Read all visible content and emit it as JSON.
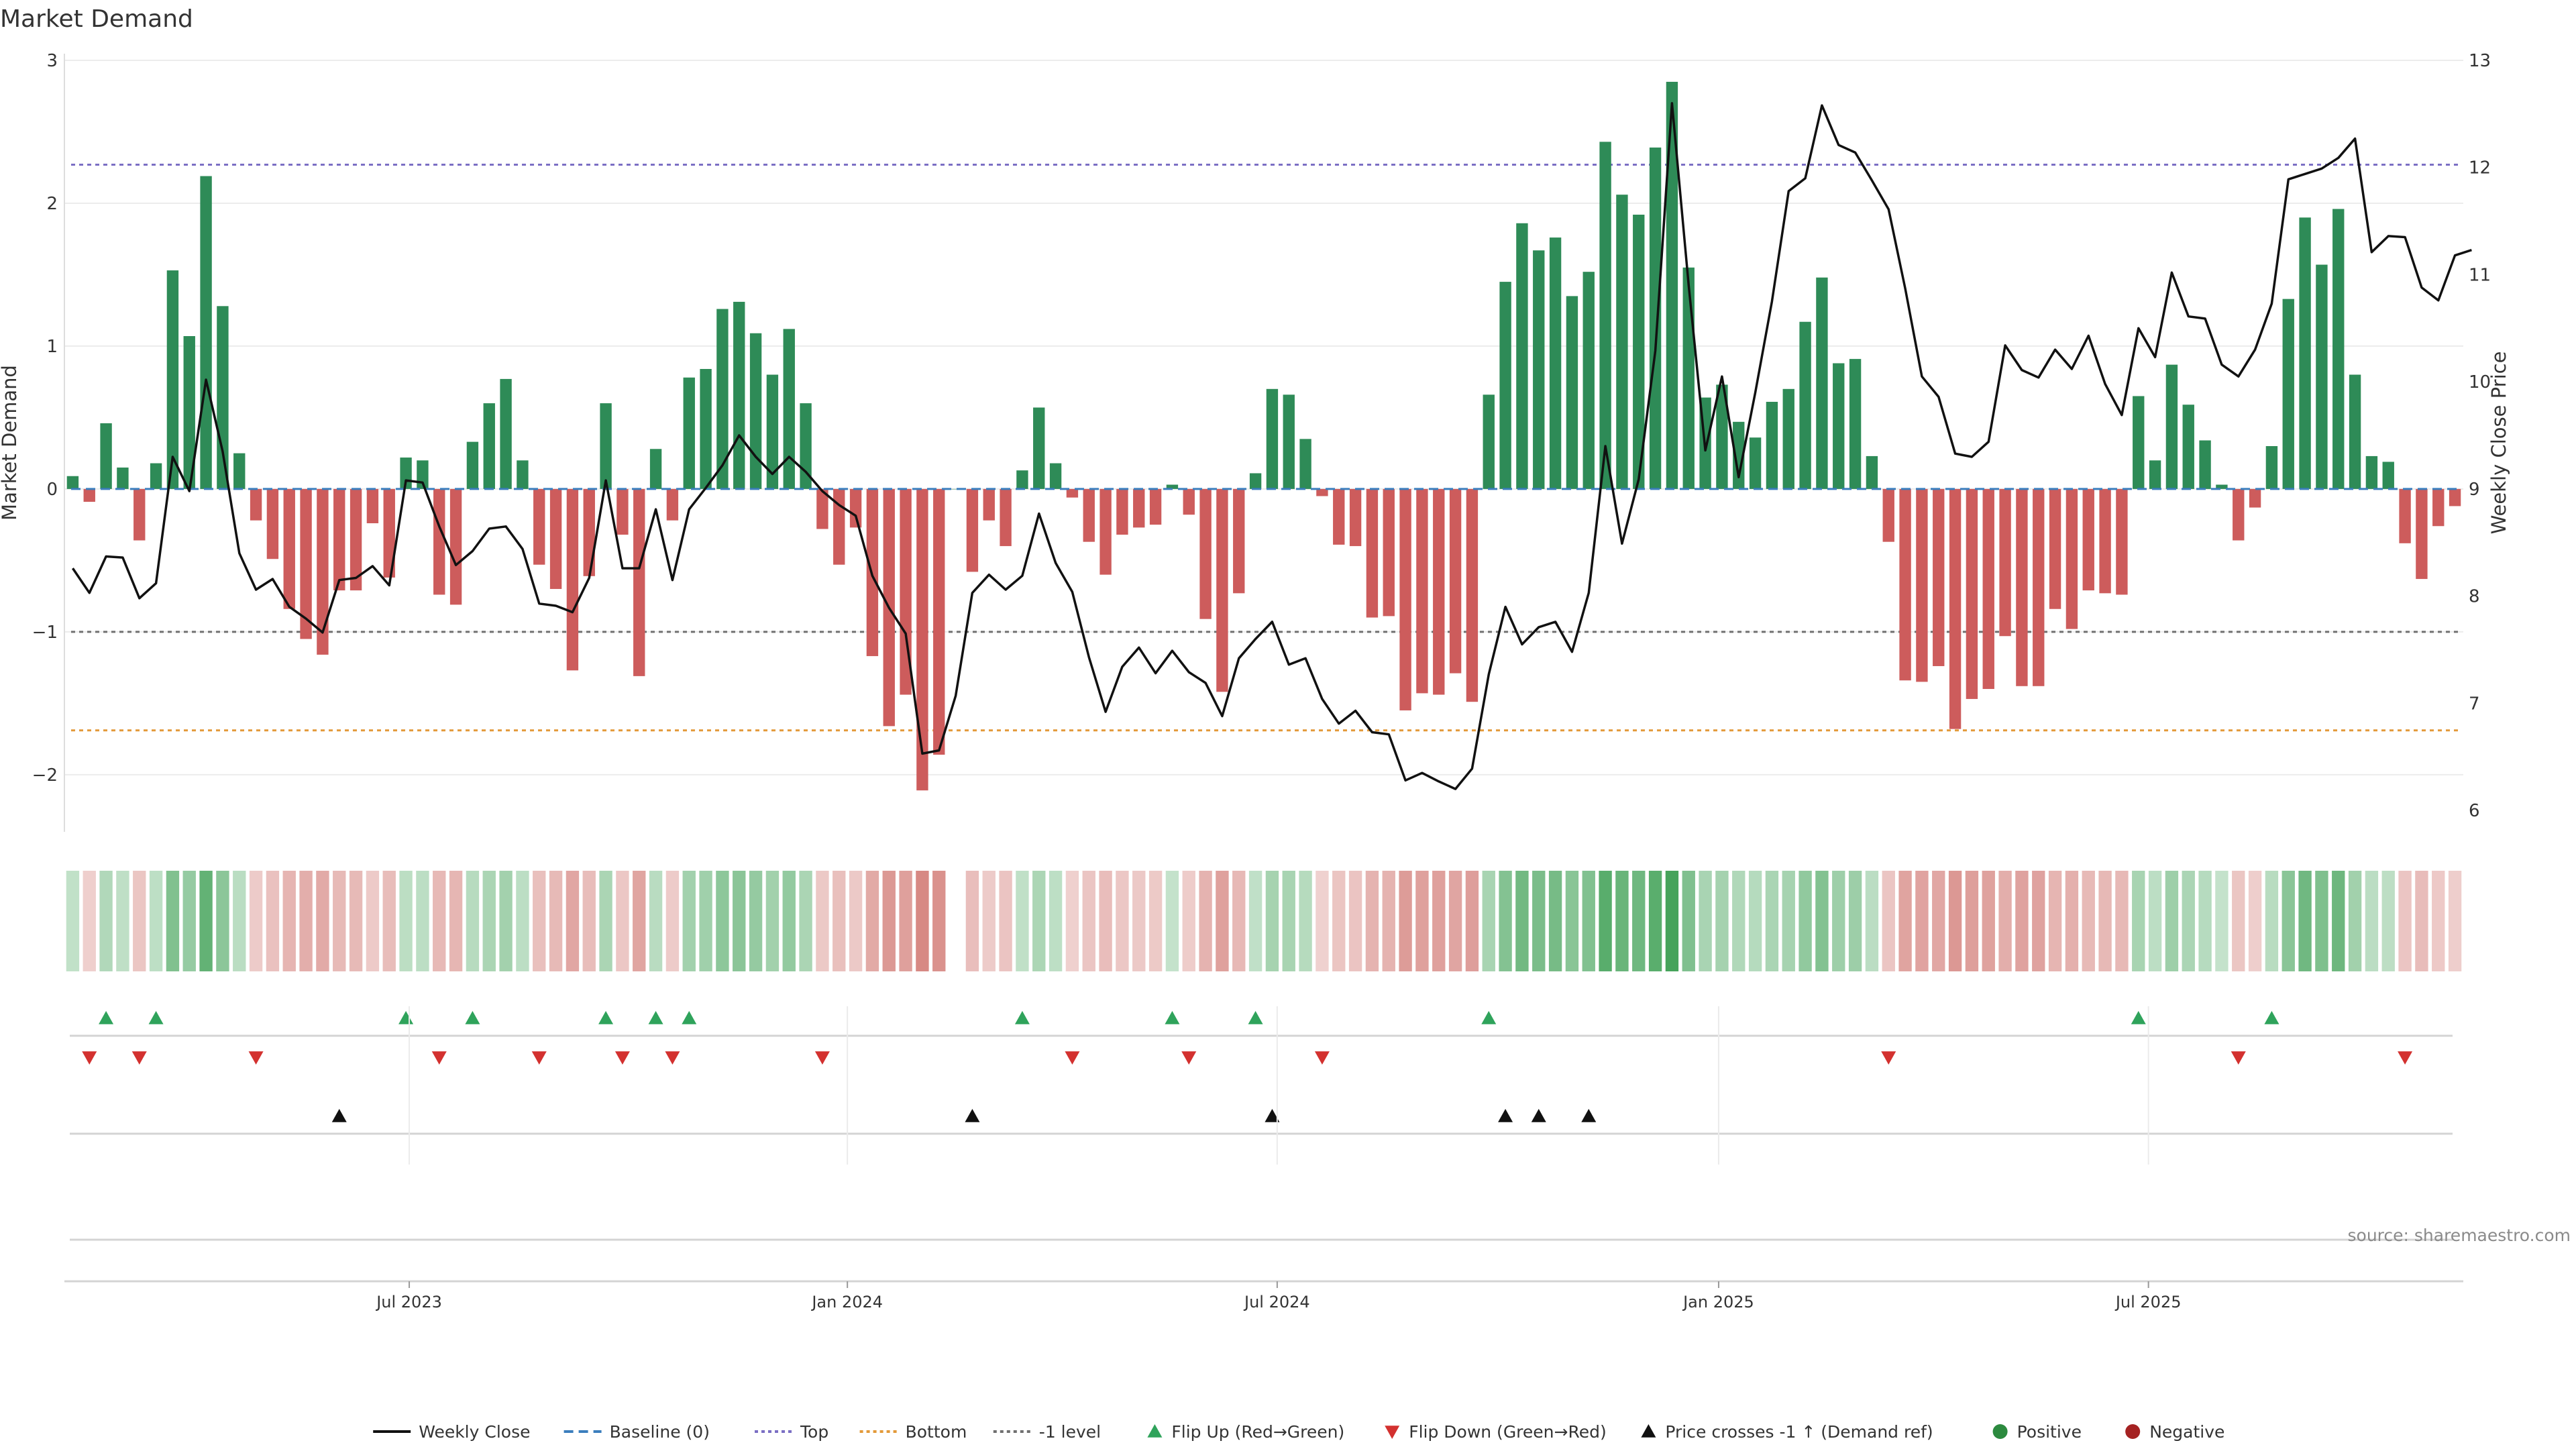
{
  "chart_data": {
    "type": "bar+line",
    "title": "Market Demand",
    "left_axis": {
      "label": "Market Demand",
      "range": [
        -2.4,
        3.0
      ],
      "ticks": [
        "3",
        "2",
        "1",
        "0",
        "−1",
        "−2"
      ],
      "tick_values": [
        3,
        2,
        1,
        0,
        -1,
        -2
      ]
    },
    "right_axis": {
      "label": "Weekly Close Price",
      "range": [
        5.8,
        13.0
      ],
      "ticks": [
        "13",
        "12",
        "11",
        "10",
        "9",
        "8",
        "7",
        "6"
      ],
      "tick_values": [
        13,
        12,
        11,
        10,
        9,
        8,
        7,
        6
      ]
    },
    "x_axis": {
      "start_week": 0,
      "ticks": [
        {
          "label": "Jul 2023",
          "week": 20.7
        },
        {
          "label": "Jan 2024",
          "week": 47
        },
        {
          "label": "Jul 2024",
          "week": 72.8
        },
        {
          "label": "Jan 2025",
          "week": 99.3
        },
        {
          "label": "Jul 2025",
          "week": 125.1
        }
      ]
    },
    "reference_lines": [
      {
        "name": "Top",
        "value": 2.27,
        "color": "#7b6fc4"
      },
      {
        "name": "-1 level",
        "value": -1.0,
        "color": "#707070"
      },
      {
        "name": "Bottom",
        "value": -1.69,
        "color": "#e39a3a"
      }
    ],
    "demand": [
      0.09,
      -0.09,
      0.46,
      0.15,
      -0.36,
      0.18,
      1.53,
      1.07,
      2.19,
      1.28,
      0.25,
      -0.22,
      -0.49,
      -0.84,
      -1.05,
      -1.16,
      -0.71,
      -0.71,
      -0.24,
      -0.62,
      0.22,
      0.2,
      -0.74,
      -0.81,
      0.33,
      0.6,
      0.77,
      0.2,
      -0.53,
      -0.7,
      -1.27,
      -0.61,
      0.6,
      -0.32,
      -1.31,
      0.28,
      -0.22,
      0.78,
      0.84,
      1.26,
      1.31,
      1.09,
      0.8,
      1.12,
      0.6,
      -0.28,
      -0.53,
      -0.27,
      -1.17,
      -1.66,
      -1.44,
      -2.11,
      -1.86,
      0.0,
      -0.58,
      -0.22,
      -0.4,
      0.13,
      0.57,
      0.18,
      -0.06,
      -0.37,
      -0.6,
      -0.32,
      -0.27,
      -0.25,
      0.03,
      -0.18,
      -0.91,
      -1.42,
      -0.73,
      0.11,
      0.7,
      0.66,
      0.35,
      -0.05,
      -0.39,
      -0.4,
      -0.9,
      -0.89,
      -1.55,
      -1.43,
      -1.44,
      -1.29,
      -1.49,
      0.66,
      1.45,
      1.86,
      1.67,
      1.76,
      1.35,
      1.52,
      2.43,
      2.06,
      1.92,
      2.39,
      2.85,
      1.55,
      0.64,
      0.73,
      0.47,
      0.36,
      0.61,
      0.7,
      1.17,
      1.48,
      0.88,
      0.91,
      0.23,
      -0.37,
      -1.34,
      -1.35,
      -1.24,
      -1.68,
      -1.47,
      -1.4,
      -1.03,
      -1.38,
      -1.38,
      -0.84,
      -0.98,
      -0.71,
      -0.73,
      -0.74,
      0.65,
      0.2,
      0.87,
      0.59,
      0.34,
      0.03,
      -0.36,
      -0.13,
      0.3,
      1.33,
      1.9,
      1.57,
      1.96,
      0.8,
      0.23,
      0.19,
      -0.38,
      -0.63,
      -0.26,
      -0.12
    ],
    "weekly_close": [
      8.26,
      8.03,
      8.37,
      8.36,
      7.98,
      8.12,
      9.3,
      8.98,
      10.02,
      9.35,
      8.4,
      8.06,
      8.16,
      7.9,
      7.79,
      7.66,
      8.15,
      8.17,
      8.28,
      8.1,
      9.08,
      9.06,
      8.65,
      8.29,
      8.42,
      8.63,
      8.65,
      8.44,
      7.93,
      7.91,
      7.85,
      8.17,
      9.08,
      8.26,
      8.26,
      8.81,
      8.15,
      8.81,
      9.01,
      9.22,
      9.5,
      9.3,
      9.14,
      9.3,
      9.16,
      8.98,
      8.85,
      8.75,
      8.19,
      7.89,
      7.65,
      6.53,
      6.56,
      7.07,
      8.03,
      8.2,
      8.06,
      8.19,
      8.77,
      8.31,
      8.04,
      7.43,
      6.92,
      7.34,
      7.52,
      7.28,
      7.49,
      7.29,
      7.19,
      6.88,
      7.42,
      7.6,
      7.76,
      7.36,
      7.42,
      7.04,
      6.81,
      6.93,
      6.73,
      6.71,
      6.28,
      6.35,
      6.27,
      6.2,
      6.39,
      7.27,
      7.9,
      7.55,
      7.71,
      7.76,
      7.48,
      8.03,
      9.4,
      8.49,
      9.09,
      10.29,
      12.6,
      10.9,
      9.36,
      10.05,
      9.11,
      9.9,
      10.75,
      11.78,
      11.9,
      12.58,
      12.21,
      12.14,
      11.88,
      11.61,
      10.87,
      10.05,
      9.86,
      9.33,
      9.3,
      9.44,
      10.34,
      10.11,
      10.04,
      10.3,
      10.12,
      10.43,
      9.98,
      9.69,
      10.5,
      10.23,
      11.02,
      10.61,
      10.59,
      10.16,
      10.05,
      10.3,
      10.73,
      11.89,
      11.94,
      11.99,
      12.09,
      12.27,
      11.21,
      11.36,
      11.35,
      10.88,
      10.76,
      11.18,
      11.23
    ],
    "flip_up_weeks": [
      2,
      5,
      20,
      24,
      32,
      35,
      37,
      57,
      66,
      71,
      85,
      124,
      132
    ],
    "flip_down_weeks": [
      1,
      4,
      11,
      22,
      28,
      33,
      36,
      45,
      60,
      67,
      75,
      109,
      130,
      140
    ],
    "price_cross_weeks": [
      16,
      54,
      72,
      86,
      88,
      91
    ],
    "legend": [
      {
        "label": "Weekly Close",
        "symbol": "line",
        "color": "#111111"
      },
      {
        "label": "Baseline (0)",
        "symbol": "dash",
        "color": "#3b7ebd"
      },
      {
        "label": "Top",
        "symbol": "dot",
        "color": "#7b6fc4"
      },
      {
        "label": "Bottom",
        "symbol": "dot",
        "color": "#e39a3a"
      },
      {
        "label": "-1 level",
        "symbol": "dot",
        "color": "#707070"
      },
      {
        "label": "Flip Up (Red→Green)",
        "symbol": "tri-up",
        "color": "#2fa35b"
      },
      {
        "label": "Flip Down (Green→Red)",
        "symbol": "tri-down",
        "color": "#d3312f"
      },
      {
        "label": "Price crosses -1 ↑ (Demand ref)",
        "symbol": "tri-up",
        "color": "#111111"
      },
      {
        "label": "Positive",
        "symbol": "circle",
        "color": "#2c8a3f"
      },
      {
        "label": "Negative",
        "symbol": "circle",
        "color": "#a52222"
      }
    ],
    "source": "source: sharemaestro.com",
    "colors": {
      "positive_bar": "#2e8b57",
      "negative_bar": "#cd5c5c",
      "flip_up": "#2fa35b",
      "flip_down": "#d3312f",
      "price_cross": "#111111",
      "line": "#111111",
      "baseline": "#3b7ebd",
      "grid": "#ececec",
      "axis": "#cccccc"
    }
  }
}
